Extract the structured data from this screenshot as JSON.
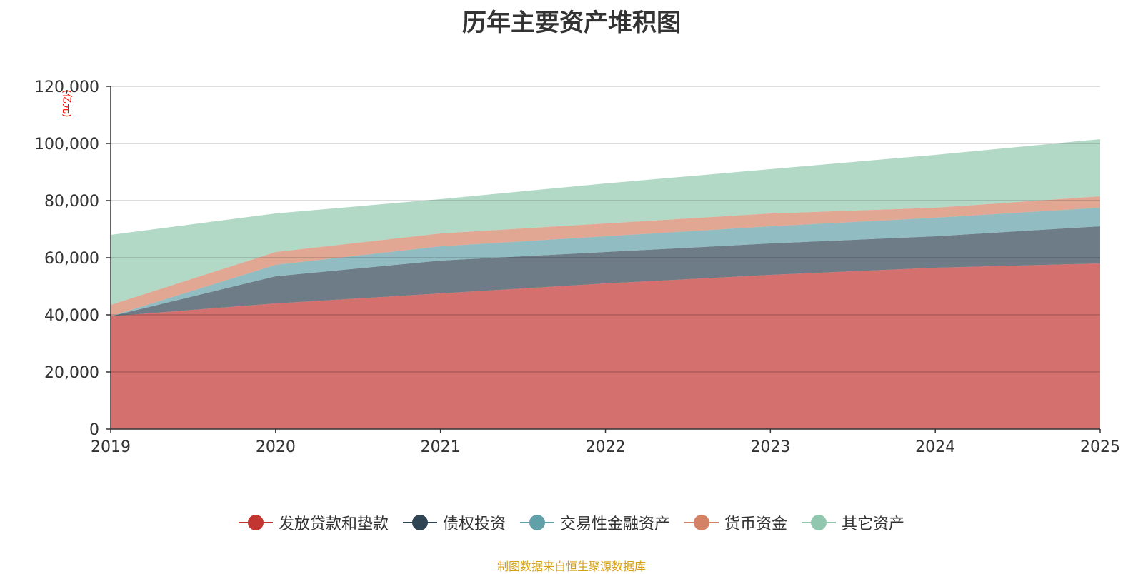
{
  "chart_data": {
    "type": "area",
    "stacked": true,
    "title": "历年主要资产堆积图",
    "ylabel": "亿元",
    "xlabel": "",
    "x": [
      "2019",
      "2020",
      "2021",
      "2022",
      "2023",
      "2024",
      "2025"
    ],
    "ylim": [
      0,
      120000
    ],
    "yticks": [
      0,
      20000,
      40000,
      60000,
      80000,
      100000,
      120000
    ],
    "ytick_labels": [
      "0",
      "20,000",
      "40,000",
      "60,000",
      "80,000",
      "100,000",
      "120,000"
    ],
    "grid": true,
    "legend_position": "bottom",
    "series": [
      {
        "name": "发放贷款和垫款",
        "color": "#c23531",
        "values": [
          39500,
          44000,
          47500,
          51000,
          54000,
          56500,
          58000
        ]
      },
      {
        "name": "债权投资",
        "color": "#2f4554",
        "values": [
          0,
          9500,
          11500,
          11000,
          11000,
          11000,
          13000
        ]
      },
      {
        "name": "交易性金融资产",
        "color": "#61a0a8",
        "values": [
          0,
          4000,
          5000,
          5500,
          6000,
          6500,
          6500
        ]
      },
      {
        "name": "货币资金",
        "color": "#d48265",
        "values": [
          4000,
          4500,
          4500,
          4500,
          4500,
          3500,
          4000
        ]
      },
      {
        "name": "其它资产",
        "color": "#91c7ae",
        "values": [
          24500,
          13500,
          12000,
          14000,
          15500,
          18500,
          20000
        ]
      }
    ]
  },
  "source": "制图数据来自恒生聚源数据库"
}
